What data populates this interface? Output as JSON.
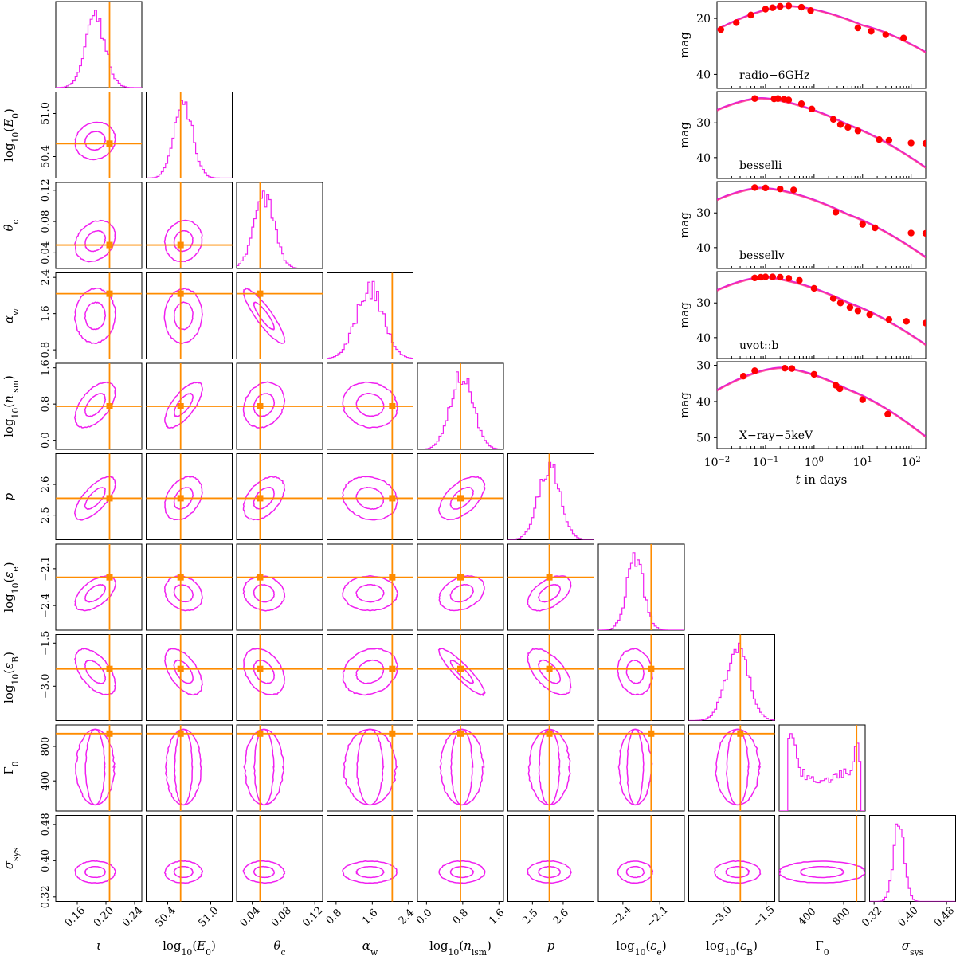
{
  "chart_data": [
    {
      "type": "corner",
      "parameters": [
        {
          "id": "iota",
          "label": "ι",
          "range": [
            0.13,
            0.25
          ],
          "ticks": [
            "0.16",
            "0.20",
            "0.24"
          ],
          "truth": 0.205
        },
        {
          "id": "logE0",
          "label": "log10(E0)",
          "range": [
            50.1,
            51.3
          ],
          "ticks": [
            "50.4",
            "51.0"
          ],
          "truth": 50.58
        },
        {
          "id": "theta_c",
          "label": "θc",
          "range": [
            0.02,
            0.13
          ],
          "ticks": [
            "0.04",
            "0.08",
            "0.12"
          ],
          "truth": 0.05
        },
        {
          "id": "alpha_w",
          "label": "αw",
          "range": [
            0.6,
            2.5
          ],
          "ticks": [
            "0.8",
            "1.6",
            "2.4"
          ],
          "truth": 2.04
        },
        {
          "id": "log_nism",
          "label": "log10(nism)",
          "range": [
            -0.2,
            1.7
          ],
          "ticks": [
            "0.0",
            "0.8",
            "1.6"
          ],
          "truth": 0.75
        },
        {
          "id": "p",
          "label": "p",
          "range": [
            2.42,
            2.7
          ],
          "ticks": [
            "2.5",
            "2.6"
          ],
          "truth": 2.555
        },
        {
          "id": "log_eps_e",
          "label": "log10(εe)",
          "range": [
            -2.6,
            -1.9
          ],
          "ticks": [
            "-2.4",
            "-2.1"
          ],
          "truth": -2.17
        },
        {
          "id": "log_eps_B",
          "label": "log10(εB)",
          "range": [
            -4.2,
            -1.2
          ],
          "ticks": [
            "-3.0",
            "-1.5"
          ],
          "truth": -2.4
        },
        {
          "id": "Gamma0",
          "label": "Γ0",
          "range": [
            50,
            1050
          ],
          "ticks": [
            "400",
            "800"
          ],
          "truth": 950
        },
        {
          "id": "sigma_sys",
          "label": "σsys",
          "range": [
            0.31,
            0.5
          ],
          "ticks": [
            "0.32",
            "0.40",
            "0.48"
          ],
          "truth": null
        }
      ],
      "posterior_mean": [
        0.185,
        50.62,
        0.055,
        1.55,
        0.78,
        2.555,
        -2.3,
        -2.5,
        550,
        0.375
      ],
      "posterior_sd": [
        0.014,
        0.13,
        0.013,
        0.3,
        0.25,
        0.035,
        0.07,
        0.4,
        250,
        0.012
      ],
      "contour_colour": "#f020f0",
      "truth_colour": "#ff8c00"
    },
    {
      "type": "line",
      "xlabel": "t in days",
      "xscale": "log",
      "xlim": [
        0.01,
        200
      ],
      "xticks": [
        "10−2",
        "10−1",
        "100",
        "101",
        "102"
      ],
      "ylabel": "mag",
      "y_inverted": true,
      "line_colour": "#e020e0",
      "point_colour": "#ff0000",
      "panels": [
        {
          "band": "radio-6GHz",
          "ylim": [
            14,
            45
          ],
          "yticks": [
            20,
            40
          ],
          "t_peak": 0.3,
          "m_peak": 15.5,
          "rise": 5,
          "fall": 3.5,
          "bump": [
            10,
            -2.5
          ],
          "points": [
            [
              0.012,
              24
            ],
            [
              0.025,
              21.5
            ],
            [
              0.05,
              18.8
            ],
            [
              0.1,
              16.7
            ],
            [
              0.14,
              16.2
            ],
            [
              0.2,
              15.7
            ],
            [
              0.3,
              15.5
            ],
            [
              0.55,
              16
            ],
            [
              0.85,
              17.2
            ],
            [
              8,
              23.4
            ],
            [
              15,
              24.6
            ],
            [
              30,
              25.8
            ],
            [
              70,
              27
            ]
          ]
        },
        {
          "band": "besselli",
          "ylim": [
            21,
            46
          ],
          "yticks": [
            30,
            40
          ],
          "t_peak": 0.08,
          "m_peak": 22.8,
          "rise": 4.5,
          "fall": 3,
          "bump": [
            5,
            -1.5
          ],
          "points": [
            [
              0.06,
              23
            ],
            [
              0.15,
              23.1
            ],
            [
              0.18,
              23
            ],
            [
              0.24,
              23.2
            ],
            [
              0.3,
              23.4
            ],
            [
              0.55,
              24.5
            ],
            [
              0.9,
              26
            ],
            [
              2.5,
              29
            ],
            [
              3.5,
              30.5
            ],
            [
              5,
              31.3
            ],
            [
              8,
              32.3
            ],
            [
              22,
              34.8
            ],
            [
              35,
              35
            ],
            [
              100,
              35.8
            ],
            [
              200,
              35.9
            ]
          ]
        },
        {
          "band": "bessellv",
          "ylim": [
            21,
            46
          ],
          "yticks": [
            30,
            40
          ],
          "t_peak": 0.08,
          "m_peak": 22.7,
          "rise": 4.5,
          "fall": 3,
          "bump": [
            5,
            -1.5
          ],
          "points": [
            [
              0.06,
              22.7
            ],
            [
              0.1,
              22.8
            ],
            [
              0.2,
              23.1
            ],
            [
              0.38,
              23.4
            ],
            [
              2.8,
              29.8
            ],
            [
              10,
              33.3
            ],
            [
              18,
              34.3
            ],
            [
              100,
              35.8
            ],
            [
              200,
              35.9
            ]
          ]
        },
        {
          "band": "uvot::b",
          "ylim": [
            21,
            46
          ],
          "yticks": [
            30,
            40
          ],
          "t_peak": 0.09,
          "m_peak": 22.5,
          "rise": 4.5,
          "fall": 3,
          "bump": [
            5,
            -1.5
          ],
          "points": [
            [
              0.06,
              22.8
            ],
            [
              0.08,
              22.6
            ],
            [
              0.1,
              22.5
            ],
            [
              0.14,
              22.5
            ],
            [
              0.2,
              22.6
            ],
            [
              0.3,
              22.9
            ],
            [
              0.5,
              23.5
            ],
            [
              1.0,
              25.8
            ],
            [
              2.5,
              28.7
            ],
            [
              3.5,
              30
            ],
            [
              5.5,
              31.3
            ],
            [
              8,
              32.3
            ],
            [
              14,
              33.4
            ],
            [
              35,
              34.8
            ],
            [
              80,
              35.3
            ],
            [
              200,
              35.8
            ]
          ]
        },
        {
          "band": "X-ray-5keV",
          "ylim": [
            29,
            53
          ],
          "yticks": [
            30,
            40,
            50
          ],
          "t_peak": 0.2,
          "m_peak": 30.6,
          "rise": 4.5,
          "fall": 3.5,
          "bump": [
            5,
            -1.5
          ],
          "points": [
            [
              0.035,
              33
            ],
            [
              0.06,
              31.5
            ],
            [
              0.25,
              30.8
            ],
            [
              0.35,
              30.9
            ],
            [
              1.0,
              32.5
            ],
            [
              2.8,
              35.5
            ],
            [
              3.4,
              36.5
            ],
            [
              10,
              39.5
            ],
            [
              33,
              43.5
            ]
          ]
        }
      ]
    }
  ]
}
